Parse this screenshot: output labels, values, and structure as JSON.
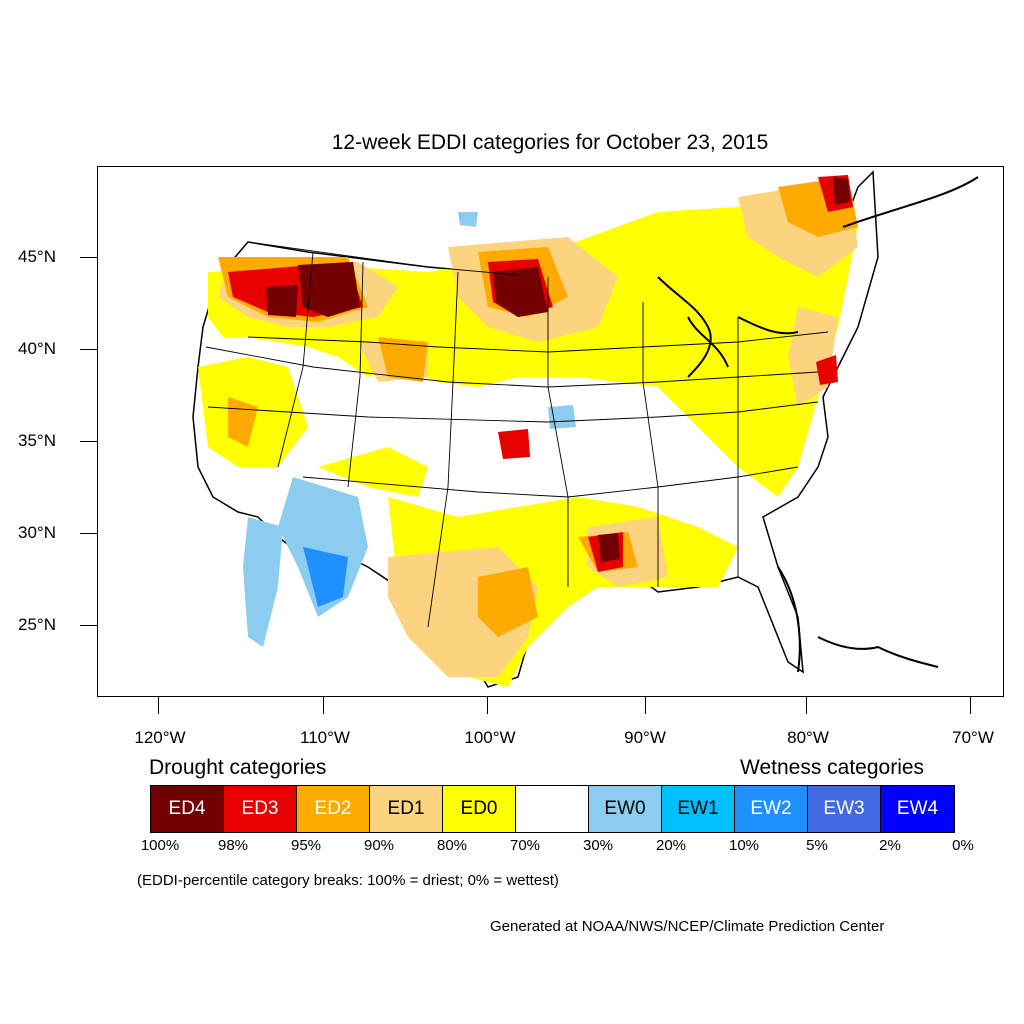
{
  "title": "12-week EDDI categories for October 23, 2015",
  "map": {
    "lat_labels": [
      "45°N",
      "40°N",
      "35°N",
      "30°N",
      "25°N"
    ],
    "lon_labels": [
      "120°W",
      "110°W",
      "100°W",
      "90°W",
      "80°W",
      "70°W"
    ]
  },
  "legend": {
    "drought_heading": "Drought categories",
    "wetness_heading": "Wetness categories",
    "categories": [
      {
        "label": "ED4",
        "color": "#730000",
        "text_color": "#ffffff"
      },
      {
        "label": "ED3",
        "color": "#e60000",
        "text_color": "#ffffff"
      },
      {
        "label": "ED2",
        "color": "#ffaa00",
        "text_color": "#ffffff"
      },
      {
        "label": "ED1",
        "color": "#fcd37f",
        "text_color": "#000000"
      },
      {
        "label": "ED0",
        "color": "#ffff00",
        "text_color": "#000000"
      },
      {
        "label": "",
        "color": "#ffffff",
        "text_color": "#000000"
      },
      {
        "label": "EW0",
        "color": "#8ccdef",
        "text_color": "#000000"
      },
      {
        "label": "EW1",
        "color": "#00bfff",
        "text_color": "#000000"
      },
      {
        "label": "EW2",
        "color": "#1e90ff",
        "text_color": "#ffffff"
      },
      {
        "label": "EW3",
        "color": "#4169e1",
        "text_color": "#ffffff"
      },
      {
        "label": "EW4",
        "color": "#0000ff",
        "text_color": "#ffffff"
      }
    ],
    "percentiles": [
      "100%",
      "98%",
      "95%",
      "90%",
      "80%",
      "70%",
      "30%",
      "20%",
      "10%",
      "5%",
      "2%",
      "0%"
    ]
  },
  "note": "(EDDI-percentile category breaks: 100% = driest; 0% = wettest)",
  "credit": "Generated at NOAA/NWS/NCEP/Climate Prediction Center"
}
